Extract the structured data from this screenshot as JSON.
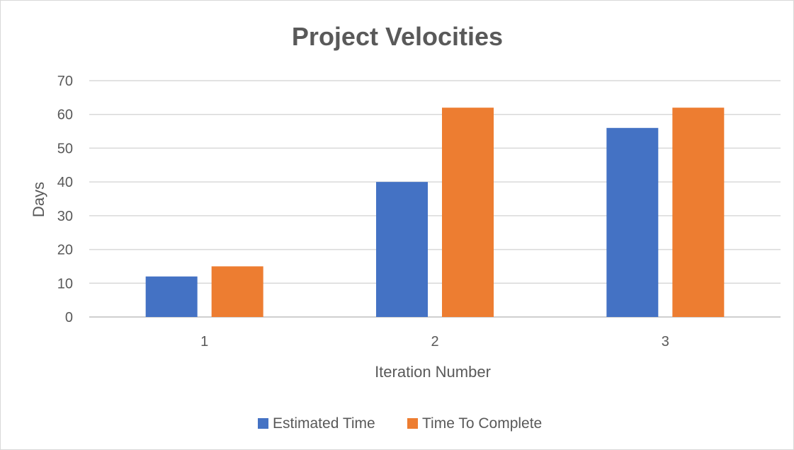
{
  "chart_data": {
    "type": "bar",
    "title": "Project Velocities",
    "xlabel": "Iteration Number",
    "ylabel": "Days",
    "categories": [
      "1",
      "2",
      "3"
    ],
    "series": [
      {
        "name": "Estimated Time",
        "values": [
          12,
          40,
          56
        ],
        "color": "#4472c4"
      },
      {
        "name": "Time To Complete",
        "values": [
          15,
          62,
          62
        ],
        "color": "#ed7d31"
      }
    ],
    "ylim": [
      0,
      70
    ],
    "yticks": [
      0,
      10,
      20,
      30,
      40,
      50,
      60,
      70
    ],
    "grid": true,
    "legend_position": "bottom"
  }
}
